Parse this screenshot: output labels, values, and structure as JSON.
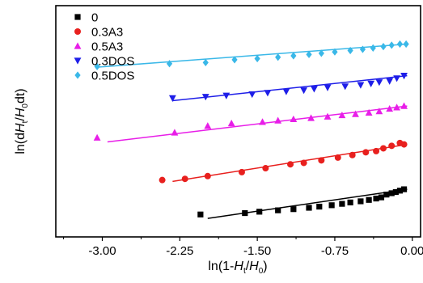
{
  "chart_data": {
    "type": "scatter",
    "title": "",
    "xlabel": {
      "prefix": "ln(1-",
      "italic1": "H",
      "sub1": "t",
      "mid": "/",
      "italic2": "H",
      "sub2": "0",
      "suffix": ")"
    },
    "ylabel": {
      "prefix": "ln(d",
      "italic1": "H",
      "sub1": "t",
      "mid": "/",
      "italic2": "H",
      "sub2": "0",
      "suffix": "dt)"
    },
    "xlim": [
      -3.45,
      0.08
    ],
    "xticks": [
      -3.0,
      -2.25,
      -1.5,
      -0.75,
      0.0
    ],
    "xtick_labels": [
      "-3.00",
      "-2.25",
      "-1.50",
      "-0.75",
      "0.00"
    ],
    "xminor_ticks": [
      -3.375,
      -2.625,
      -1.875,
      -1.125,
      -0.375
    ],
    "ylim": [
      0,
      1
    ],
    "y_tick_labels_shown": false,
    "grid": false,
    "legend_position": "top-left",
    "series": [
      {
        "name": "0",
        "color": "#000000",
        "marker": "square",
        "x": [
          -2.05,
          -1.62,
          -1.48,
          -1.3,
          -1.15,
          -1.0,
          -0.9,
          -0.78,
          -0.68,
          -0.6,
          -0.5,
          -0.42,
          -0.35,
          -0.3,
          -0.25,
          -0.2,
          -0.16,
          -0.12,
          -0.08
        ],
        "y": [
          0.097,
          0.103,
          0.109,
          0.115,
          0.12,
          0.126,
          0.131,
          0.137,
          0.143,
          0.149,
          0.154,
          0.16,
          0.166,
          0.171,
          0.183,
          0.189,
          0.194,
          0.2,
          0.206
        ],
        "fit": [
          [
            -1.98,
            0.08
          ],
          [
            -0.05,
            0.206
          ]
        ]
      },
      {
        "name": "0.3A3",
        "color": "#e8201e",
        "marker": "circle",
        "x": [
          -2.42,
          -2.2,
          -1.98,
          -1.65,
          -1.42,
          -1.18,
          -1.05,
          -0.88,
          -0.72,
          -0.58,
          -0.45,
          -0.35,
          -0.28,
          -0.2,
          -0.12,
          -0.08
        ],
        "y": [
          0.246,
          0.251,
          0.263,
          0.28,
          0.297,
          0.314,
          0.32,
          0.331,
          0.343,
          0.354,
          0.366,
          0.371,
          0.383,
          0.394,
          0.406,
          0.4
        ],
        "fit": [
          [
            -2.32,
            0.24
          ],
          [
            -0.05,
            0.4
          ]
        ]
      },
      {
        "name": "0.5A3",
        "color": "#e81ee8",
        "marker": "triangle-up",
        "x": [
          -3.05,
          -2.3,
          -1.98,
          -1.75,
          -1.45,
          -1.3,
          -1.15,
          -0.98,
          -0.82,
          -0.68,
          -0.55,
          -0.42,
          -0.32,
          -0.22,
          -0.15,
          -0.08
        ],
        "y": [
          0.429,
          0.451,
          0.48,
          0.491,
          0.497,
          0.503,
          0.509,
          0.514,
          0.52,
          0.526,
          0.531,
          0.537,
          0.543,
          0.554,
          0.56,
          0.566
        ],
        "fit": [
          [
            -2.95,
            0.411
          ],
          [
            -0.05,
            0.566
          ]
        ]
      },
      {
        "name": "0.3DOS",
        "color": "#1e1ee8",
        "marker": "triangle-down",
        "x": [
          -2.32,
          -2.0,
          -1.8,
          -1.55,
          -1.4,
          -1.22,
          -1.05,
          -0.95,
          -0.82,
          -0.65,
          -0.5,
          -0.4,
          -0.32,
          -0.22,
          -0.15,
          -0.08
        ],
        "y": [
          0.6,
          0.606,
          0.611,
          0.617,
          0.623,
          0.629,
          0.634,
          0.64,
          0.646,
          0.651,
          0.657,
          0.663,
          0.669,
          0.674,
          0.686,
          0.697
        ],
        "fit": [
          [
            -2.32,
            0.589
          ],
          [
            -0.05,
            0.697
          ]
        ]
      },
      {
        "name": "0.5DOS",
        "color": "#3ab8e8",
        "marker": "diamond",
        "x": [
          -3.05,
          -2.35,
          -2.0,
          -1.72,
          -1.5,
          -1.3,
          -1.15,
          -1.0,
          -0.88,
          -0.75,
          -0.6,
          -0.48,
          -0.38,
          -0.28,
          -0.2,
          -0.12,
          -0.06
        ],
        "y": [
          0.737,
          0.749,
          0.754,
          0.766,
          0.771,
          0.777,
          0.783,
          0.789,
          0.794,
          0.8,
          0.806,
          0.811,
          0.817,
          0.823,
          0.829,
          0.834,
          0.834
        ],
        "fit": [
          [
            -3.05,
            0.734
          ],
          [
            -0.05,
            0.834
          ]
        ]
      }
    ]
  }
}
